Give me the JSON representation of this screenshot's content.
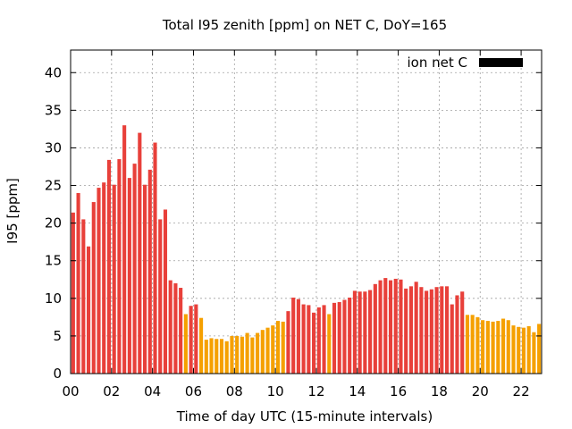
{
  "chart_data": {
    "type": "bar",
    "title": "Total I95 zenith [ppm] on NET C, DoY=165",
    "xlabel": "Time of day UTC (15-minute intervals)",
    "ylabel": "I95 [ppm]",
    "ylim": [
      0,
      43
    ],
    "y_ticks": [
      "0",
      "5",
      "10",
      "15",
      "20",
      "25",
      "30",
      "35",
      "40"
    ],
    "x_ticks": [
      "00",
      "02",
      "04",
      "06",
      "08",
      "10",
      "12",
      "14",
      "16",
      "18",
      "20",
      "22"
    ],
    "grid": true,
    "legend": {
      "label": "ion net C",
      "placement": "top-right",
      "color": "#000000"
    },
    "colors": {
      "high": "#e8403a",
      "low": "#f5a000"
    },
    "bins_per_hour": 4,
    "values": [
      21.4,
      24.0,
      20.5,
      16.9,
      22.8,
      24.7,
      25.4,
      28.4,
      25.1,
      28.5,
      33.0,
      26.0,
      27.9,
      32.0,
      25.1,
      27.1,
      30.7,
      20.5,
      21.8,
      12.4,
      12.0,
      11.4,
      7.9,
      9.0,
      9.2,
      7.4,
      4.5,
      4.7,
      4.6,
      4.6,
      4.3,
      5.0,
      5.0,
      4.9,
      5.4,
      4.8,
      5.4,
      5.8,
      6.1,
      6.4,
      7.0,
      6.9,
      8.3,
      10.1,
      9.9,
      9.2,
      9.1,
      8.1,
      8.8,
      9.1,
      7.9,
      9.4,
      9.5,
      9.8,
      10.1,
      11.0,
      10.9,
      10.9,
      11.1,
      11.9,
      12.4,
      12.7,
      12.4,
      12.6,
      12.5,
      11.3,
      11.6,
      12.2,
      11.5,
      11.0,
      11.2,
      11.5,
      11.6,
      11.6,
      9.2,
      10.4,
      10.9,
      7.8,
      7.8,
      7.5,
      7.1,
      7.0,
      6.9,
      7.0,
      7.3,
      7.1,
      6.4,
      6.2,
      6.1,
      6.3,
      5.5,
      6.6
    ],
    "series_color_index": [
      0,
      0,
      0,
      0,
      0,
      0,
      0,
      0,
      0,
      0,
      0,
      0,
      0,
      0,
      0,
      0,
      0,
      0,
      0,
      0,
      0,
      0,
      1,
      0,
      0,
      1,
      1,
      1,
      1,
      1,
      1,
      1,
      1,
      1,
      1,
      1,
      1,
      1,
      1,
      1,
      1,
      1,
      0,
      0,
      0,
      0,
      0,
      0,
      0,
      0,
      1,
      0,
      0,
      0,
      0,
      0,
      0,
      0,
      0,
      0,
      0,
      0,
      0,
      0,
      0,
      0,
      0,
      0,
      0,
      0,
      0,
      0,
      0,
      0,
      0,
      0,
      0,
      1,
      1,
      1,
      1,
      1,
      1,
      1,
      1,
      1,
      1,
      1,
      1,
      1,
      1,
      1
    ]
  }
}
